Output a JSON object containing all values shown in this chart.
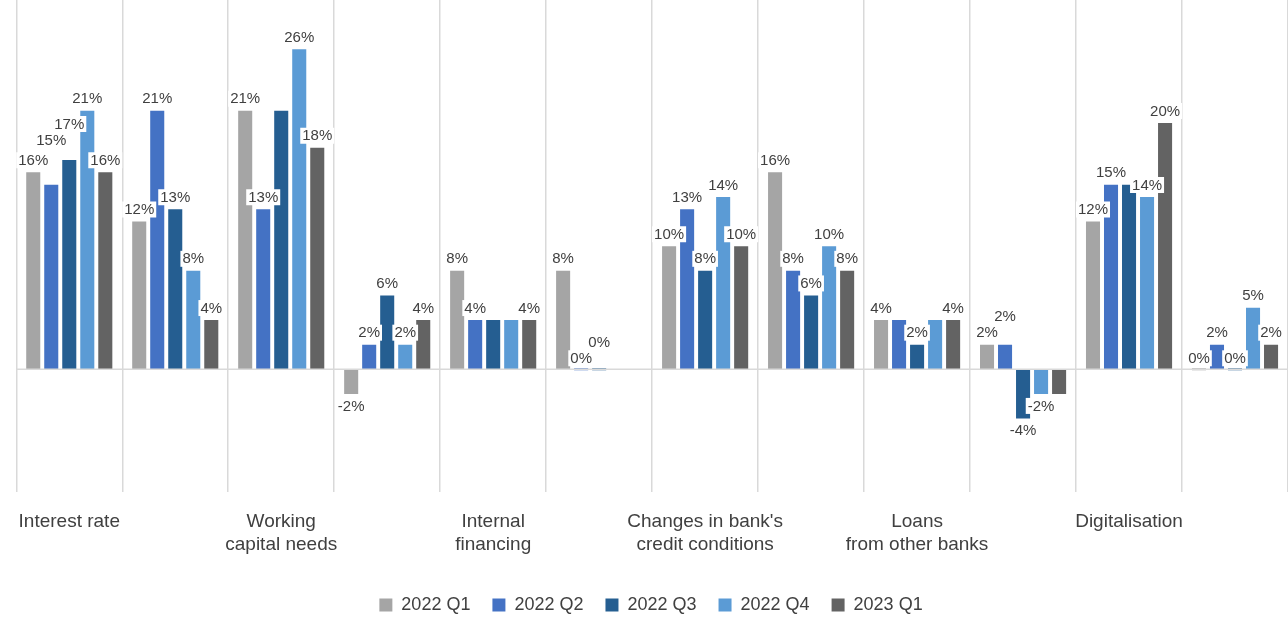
{
  "chart_data": {
    "type": "bar",
    "categories": [
      "Interest rate",
      null,
      "Working\ncapital needs",
      null,
      "Internal\nfinancing",
      null,
      "Changes in bank's\ncredit conditions",
      null,
      "Loans\nfrom other banks",
      null,
      "Digitalisation",
      null
    ],
    "series": [
      {
        "name": "2022 Q1",
        "color": "#a5a5a5",
        "values": [
          16,
          12,
          21,
          -2,
          8,
          8,
          10,
          16,
          4,
          2,
          12,
          0
        ],
        "value_labels": [
          "16%",
          "12%",
          "21%",
          "-2%",
          "8%",
          "8%",
          "10%",
          "16%",
          "4%",
          "2%",
          "12%",
          "0%"
        ]
      },
      {
        "name": "2022 Q2",
        "color": "#4472c4",
        "values": [
          15,
          21,
          13,
          2,
          4,
          0,
          13,
          8,
          4,
          2,
          15,
          2
        ],
        "value_labels": [
          "15%",
          "21%",
          "13%",
          "2%",
          "4%",
          "0%",
          "13%",
          "8%",
          null,
          "2%",
          "15%",
          "2%"
        ]
      },
      {
        "name": "2022 Q3",
        "color": "#255e91",
        "values": [
          17,
          13,
          21,
          6,
          4,
          0,
          8,
          6,
          2,
          -4,
          15,
          0
        ],
        "value_labels": [
          "17%",
          "13%",
          null,
          "6%",
          null,
          "0%",
          "8%",
          "6%",
          "2%",
          "-4%",
          null,
          "0%"
        ]
      },
      {
        "name": "2022 Q4",
        "color": "#5b9bd5",
        "values": [
          21,
          8,
          26,
          2,
          4,
          null,
          14,
          10,
          4,
          -2,
          14,
          5
        ],
        "value_labels": [
          "21%",
          "8%",
          "26%",
          "2%",
          null,
          null,
          "14%",
          "10%",
          null,
          "-2%",
          "14%",
          "5%"
        ]
      },
      {
        "name": "2023 Q1",
        "color": "#636363",
        "values": [
          16,
          4,
          18,
          4,
          4,
          null,
          10,
          8,
          4,
          -2,
          20,
          2
        ],
        "value_labels": [
          "16%",
          "4%",
          "18%",
          "4%",
          "4%",
          null,
          "10%",
          "8%",
          "4%",
          null,
          "20%",
          "2%"
        ]
      }
    ],
    "ylim": [
      -10,
      30
    ],
    "grid": "x",
    "legend": "bottom"
  }
}
